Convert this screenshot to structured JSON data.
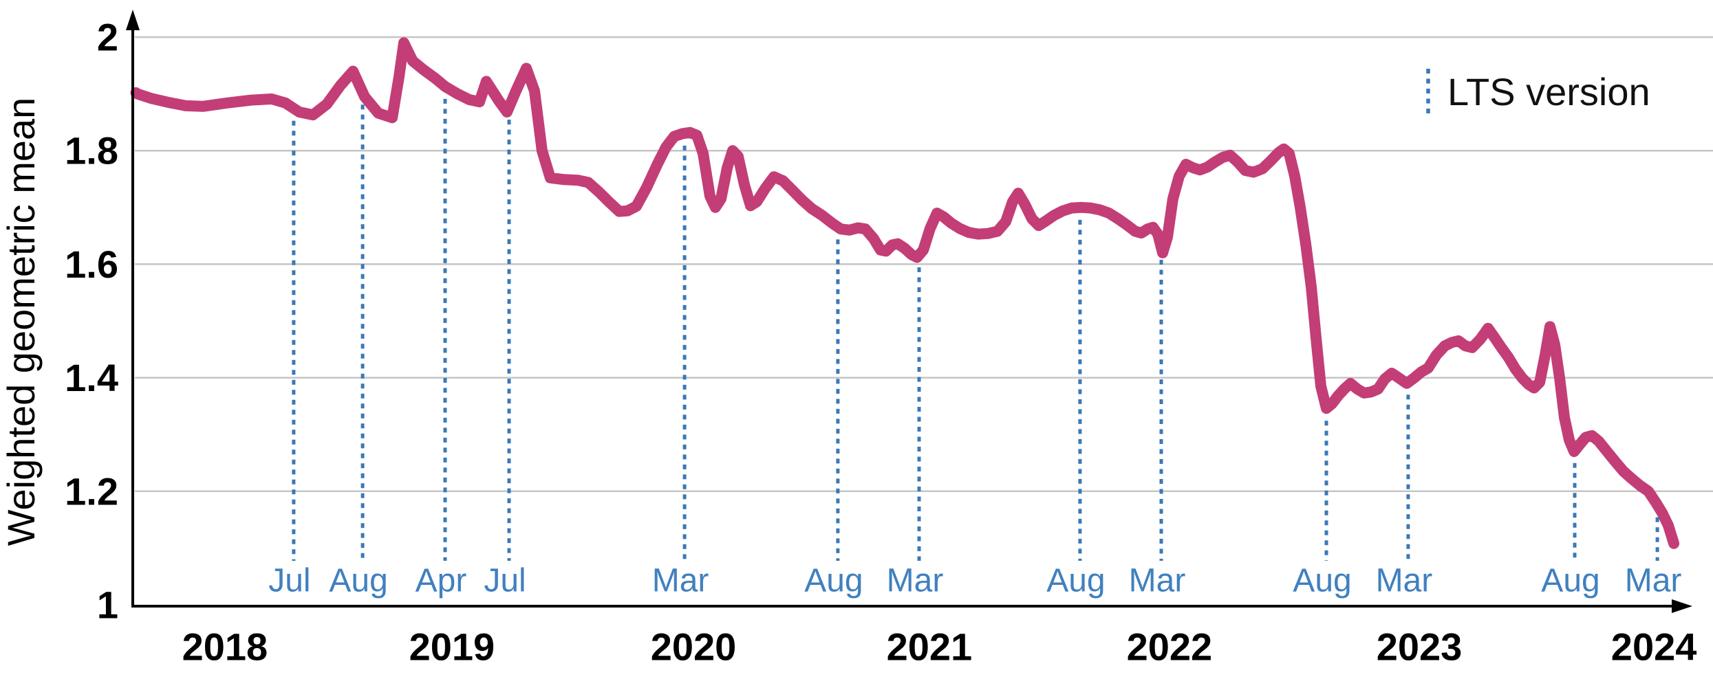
{
  "chart_data": {
    "type": "line",
    "title": "",
    "xlabel": "",
    "ylabel": "Weighted geometric mean",
    "ylim": [
      1,
      2
    ],
    "grid": "horizontal",
    "legend": {
      "label": "LTS version",
      "position": "top-right"
    },
    "colors": {
      "line": "#c33e76",
      "marker": "#3a79b7",
      "marker_text": "#4080bf",
      "grid": "#c5c5c5",
      "axis": "#000000",
      "text": "#000000"
    },
    "y_ticks": [
      {
        "label": "2",
        "value": 2.0
      },
      {
        "label": "1.8",
        "value": 1.8
      },
      {
        "label": "1.6",
        "value": 1.6
      },
      {
        "label": "1.4",
        "value": 1.4
      },
      {
        "label": "1.2",
        "value": 1.2
      },
      {
        "label": "1",
        "value": 1.0
      }
    ],
    "x_year_labels": [
      {
        "label": "2018",
        "pos_pct": 5.92
      },
      {
        "label": "2019",
        "pos_pct": 20.51
      },
      {
        "label": "2020",
        "pos_pct": 36.03
      },
      {
        "label": "2021",
        "pos_pct": 51.19
      },
      {
        "label": "2022",
        "pos_pct": 66.62
      },
      {
        "label": "2023",
        "pos_pct": 82.67
      },
      {
        "label": "2024",
        "pos_pct": 97.75
      }
    ],
    "lts_markers": [
      {
        "month": "Jul",
        "pos_pct": 10.34
      },
      {
        "month": "Aug",
        "pos_pct": 14.77
      },
      {
        "month": "Apr",
        "pos_pct": 20.07
      },
      {
        "month": "Jul",
        "pos_pct": 24.18
      },
      {
        "month": "Mar",
        "pos_pct": 35.46
      },
      {
        "month": "Aug",
        "pos_pct": 45.31
      },
      {
        "month": "Mar",
        "pos_pct": 50.53
      },
      {
        "month": "Aug",
        "pos_pct": 60.87
      },
      {
        "month": "Mar",
        "pos_pct": 66.09
      },
      {
        "month": "Aug",
        "pos_pct": 76.7
      },
      {
        "month": "Mar",
        "pos_pct": 81.96
      },
      {
        "month": "Aug",
        "pos_pct": 92.66
      },
      {
        "month": "Mar",
        "pos_pct": 97.97
      }
    ],
    "series": [
      {
        "name": "Weighted geometric mean",
        "points": [
          [
            0.2,
            1.902
          ],
          [
            0.31,
            1.9
          ],
          [
            1.19,
            1.892
          ],
          [
            2.3,
            1.885
          ],
          [
            3.4,
            1.879
          ],
          [
            4.51,
            1.878
          ],
          [
            6.06,
            1.884
          ],
          [
            7.6,
            1.889
          ],
          [
            8.93,
            1.891
          ],
          [
            9.81,
            1.884
          ],
          [
            10.7,
            1.868
          ],
          [
            11.58,
            1.863
          ],
          [
            12.47,
            1.882
          ],
          [
            13.35,
            1.915
          ],
          [
            14.15,
            1.94
          ],
          [
            14.9,
            1.895
          ],
          [
            15.78,
            1.866
          ],
          [
            16.67,
            1.858
          ],
          [
            17.11,
            1.93
          ],
          [
            17.42,
            1.99
          ],
          [
            17.99,
            1.958
          ],
          [
            18.66,
            1.943
          ],
          [
            19.41,
            1.928
          ],
          [
            20.07,
            1.913
          ],
          [
            20.87,
            1.9
          ],
          [
            21.62,
            1.89
          ],
          [
            22.28,
            1.886
          ],
          [
            22.72,
            1.922
          ],
          [
            23.52,
            1.888
          ],
          [
            24.05,
            1.868
          ],
          [
            24.62,
            1.905
          ],
          [
            25.29,
            1.945
          ],
          [
            25.82,
            1.905
          ],
          [
            26.3,
            1.8
          ],
          [
            26.83,
            1.752
          ],
          [
            27.72,
            1.749
          ],
          [
            28.6,
            1.748
          ],
          [
            29.27,
            1.744
          ],
          [
            29.93,
            1.728
          ],
          [
            30.59,
            1.71
          ],
          [
            31.26,
            1.693
          ],
          [
            31.79,
            1.694
          ],
          [
            32.36,
            1.702
          ],
          [
            33.02,
            1.735
          ],
          [
            33.69,
            1.775
          ],
          [
            34.26,
            1.806
          ],
          [
            34.79,
            1.825
          ],
          [
            35.32,
            1.83
          ],
          [
            35.81,
            1.832
          ],
          [
            36.25,
            1.827
          ],
          [
            36.65,
            1.795
          ],
          [
            37.09,
            1.72
          ],
          [
            37.44,
            1.7
          ],
          [
            37.8,
            1.715
          ],
          [
            38.2,
            1.77
          ],
          [
            38.55,
            1.8
          ],
          [
            38.9,
            1.79
          ],
          [
            39.3,
            1.74
          ],
          [
            39.7,
            1.703
          ],
          [
            40.1,
            1.71
          ],
          [
            40.63,
            1.733
          ],
          [
            41.2,
            1.754
          ],
          [
            41.78,
            1.747
          ],
          [
            42.4,
            1.73
          ],
          [
            43.01,
            1.713
          ],
          [
            43.63,
            1.698
          ],
          [
            44.3,
            1.686
          ],
          [
            44.96,
            1.672
          ],
          [
            45.49,
            1.662
          ],
          [
            46.06,
            1.66
          ],
          [
            46.6,
            1.664
          ],
          [
            47.08,
            1.662
          ],
          [
            47.61,
            1.645
          ],
          [
            48.05,
            1.625
          ],
          [
            48.41,
            1.623
          ],
          [
            48.81,
            1.634
          ],
          [
            49.16,
            1.636
          ],
          [
            49.6,
            1.628
          ],
          [
            50.04,
            1.617
          ],
          [
            50.4,
            1.612
          ],
          [
            50.8,
            1.625
          ],
          [
            51.24,
            1.663
          ],
          [
            51.68,
            1.69
          ],
          [
            52.12,
            1.683
          ],
          [
            52.61,
            1.672
          ],
          [
            53.14,
            1.663
          ],
          [
            53.71,
            1.656
          ],
          [
            54.33,
            1.653
          ],
          [
            54.95,
            1.654
          ],
          [
            55.57,
            1.658
          ],
          [
            56.1,
            1.675
          ],
          [
            56.54,
            1.71
          ],
          [
            56.9,
            1.725
          ],
          [
            57.34,
            1.705
          ],
          [
            57.78,
            1.68
          ],
          [
            58.22,
            1.668
          ],
          [
            58.67,
            1.676
          ],
          [
            59.2,
            1.686
          ],
          [
            59.77,
            1.694
          ],
          [
            60.34,
            1.699
          ],
          [
            60.96,
            1.7
          ],
          [
            61.54,
            1.699
          ],
          [
            62.11,
            1.696
          ],
          [
            62.73,
            1.69
          ],
          [
            63.31,
            1.68
          ],
          [
            63.88,
            1.669
          ],
          [
            64.41,
            1.658
          ],
          [
            64.81,
            1.655
          ],
          [
            65.21,
            1.662
          ],
          [
            65.56,
            1.665
          ],
          [
            65.87,
            1.653
          ],
          [
            66.18,
            1.62
          ],
          [
            66.49,
            1.648
          ],
          [
            66.84,
            1.715
          ],
          [
            67.24,
            1.755
          ],
          [
            67.68,
            1.776
          ],
          [
            68.12,
            1.77
          ],
          [
            68.57,
            1.766
          ],
          [
            69.05,
            1.771
          ],
          [
            69.54,
            1.78
          ],
          [
            70.03,
            1.788
          ],
          [
            70.51,
            1.792
          ],
          [
            71.0,
            1.78
          ],
          [
            71.49,
            1.765
          ],
          [
            72.02,
            1.762
          ],
          [
            72.59,
            1.768
          ],
          [
            73.12,
            1.782
          ],
          [
            73.61,
            1.796
          ],
          [
            73.96,
            1.803
          ],
          [
            74.31,
            1.795
          ],
          [
            74.67,
            1.755
          ],
          [
            75.02,
            1.7
          ],
          [
            75.38,
            1.635
          ],
          [
            75.73,
            1.56
          ],
          [
            76.04,
            1.47
          ],
          [
            76.35,
            1.385
          ],
          [
            76.7,
            1.346
          ],
          [
            77.06,
            1.354
          ],
          [
            77.45,
            1.368
          ],
          [
            77.85,
            1.38
          ],
          [
            78.25,
            1.39
          ],
          [
            78.69,
            1.38
          ],
          [
            79.13,
            1.373
          ],
          [
            79.58,
            1.375
          ],
          [
            80.02,
            1.38
          ],
          [
            80.46,
            1.398
          ],
          [
            80.9,
            1.408
          ],
          [
            81.34,
            1.4
          ],
          [
            81.87,
            1.39
          ],
          [
            82.36,
            1.4
          ],
          [
            82.8,
            1.41
          ],
          [
            83.24,
            1.417
          ],
          [
            83.77,
            1.44
          ],
          [
            84.31,
            1.456
          ],
          [
            84.75,
            1.462
          ],
          [
            85.19,
            1.465
          ],
          [
            85.63,
            1.456
          ],
          [
            86.07,
            1.453
          ],
          [
            86.6,
            1.468
          ],
          [
            87.09,
            1.487
          ],
          [
            87.53,
            1.47
          ],
          [
            87.97,
            1.452
          ],
          [
            88.42,
            1.435
          ],
          [
            88.86,
            1.415
          ],
          [
            89.3,
            1.399
          ],
          [
            89.7,
            1.388
          ],
          [
            90.05,
            1.382
          ],
          [
            90.41,
            1.392
          ],
          [
            90.76,
            1.44
          ],
          [
            91.07,
            1.49
          ],
          [
            91.38,
            1.458
          ],
          [
            91.69,
            1.4
          ],
          [
            92.0,
            1.33
          ],
          [
            92.31,
            1.29
          ],
          [
            92.62,
            1.27
          ],
          [
            92.97,
            1.282
          ],
          [
            93.37,
            1.295
          ],
          [
            93.77,
            1.298
          ],
          [
            94.21,
            1.288
          ],
          [
            94.74,
            1.27
          ],
          [
            95.27,
            1.252
          ],
          [
            95.8,
            1.235
          ],
          [
            96.33,
            1.222
          ],
          [
            96.86,
            1.21
          ],
          [
            97.39,
            1.2
          ],
          [
            97.88,
            1.18
          ],
          [
            98.28,
            1.162
          ],
          [
            98.67,
            1.14
          ],
          [
            99.03,
            1.108
          ]
        ]
      }
    ]
  }
}
